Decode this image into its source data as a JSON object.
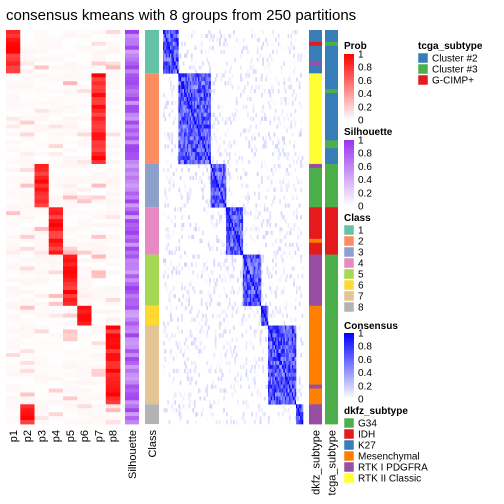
{
  "chart_data": {
    "type": "heatmap",
    "title": "consensus kmeans with 8 groups from 250 partitions",
    "prob_columns": [
      "p1",
      "p2",
      "p3",
      "p4",
      "p5",
      "p6",
      "p7",
      "p8"
    ],
    "annotation_column_labels": [
      "Silhouette",
      "Class",
      "dkfz_subtype",
      "tcga_subtype"
    ],
    "n_samples": 100,
    "class_sizes": [
      11,
      23,
      11,
      12,
      13,
      5,
      20,
      5
    ],
    "class_colors": [
      "#66C2A5",
      "#FC8D62",
      "#8DA0CB",
      "#E78AC3",
      "#A6D854",
      "#FFD92F",
      "#E5C494",
      "#B3B3B3"
    ],
    "legends": {
      "prob": {
        "title": "Prob",
        "ticks": [
          "1",
          "0.8",
          "0.6",
          "0.4",
          "0.2",
          "0"
        ],
        "low": "#ffffff",
        "high": "#ff0000"
      },
      "silhouette": {
        "title": "Silhouette",
        "ticks": [
          "1",
          "0.8",
          "0.6",
          "0.4",
          "0.2",
          "0"
        ],
        "low": "#ffffff",
        "high": "#9933ee"
      },
      "class": {
        "title": "Class",
        "labels": [
          "1",
          "2",
          "3",
          "4",
          "5",
          "6",
          "7",
          "8"
        ]
      },
      "consensus": {
        "title": "Consensus",
        "ticks": [
          "1",
          "0.8",
          "0.6",
          "0.4",
          "0.2",
          "0"
        ],
        "low": "#ffffff",
        "high": "#0000ff"
      },
      "dkfz_subtype": {
        "title": "dkfz_subtype",
        "labels": [
          "G34",
          "IDH",
          "K27",
          "Mesenchymal",
          "RTK I PDGFRA",
          "RTK II Classic"
        ],
        "colors": [
          "#4DAF4A",
          "#E41A1C",
          "#377EB8",
          "#FF7F00",
          "#984EA3",
          "#FFFF33"
        ]
      },
      "tcga_subtype": {
        "title": "tcga_subtype",
        "labels": [
          "Cluster #2",
          "Cluster #3",
          "G-CIMP+"
        ],
        "colors": [
          "#377EB8",
          "#4DAF4A",
          "#E41A1C"
        ]
      }
    }
  }
}
